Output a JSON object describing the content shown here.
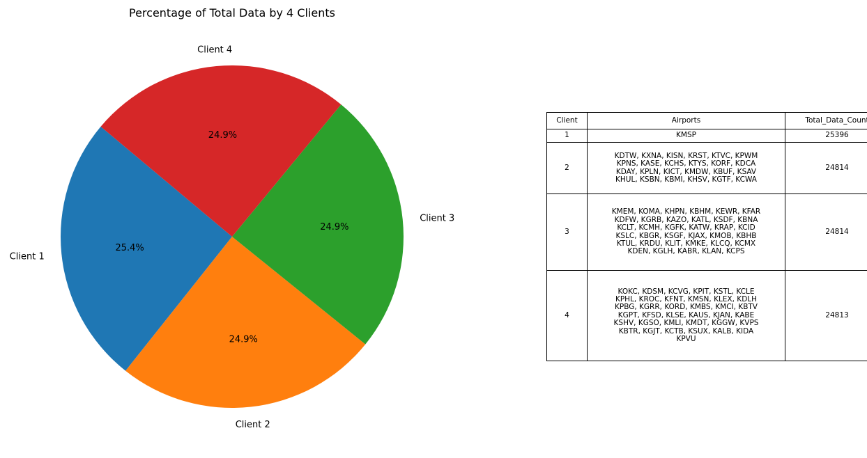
{
  "chart_data": [
    {
      "type": "pie",
      "title": "Percentage of Total Data by 4 Clients",
      "start_angle_deg": 140,
      "direction": "counterclockwise",
      "slices": [
        {
          "label": "Client 1",
          "value": 25396,
          "percent_label": "25.4%",
          "color": "#1f77b4"
        },
        {
          "label": "Client 2",
          "value": 24814,
          "percent_label": "24.9%",
          "color": "#ff7f0e"
        },
        {
          "label": "Client 3",
          "value": 24814,
          "percent_label": "24.9%",
          "color": "#2ca02c"
        },
        {
          "label": "Client 4",
          "value": 24813,
          "percent_label": "24.9%",
          "color": "#d62728"
        }
      ]
    },
    {
      "type": "table",
      "columns": [
        "Client",
        "Airports",
        "Total_Data_Count"
      ],
      "rows": [
        {
          "client": "1",
          "airports": [
            "KMSP"
          ],
          "total": "25396"
        },
        {
          "client": "2",
          "airports": [
            "KDTW, KXNA, KISN, KRST, KTVC, KPWM",
            "KPNS, KASE, KCHS, KTYS, KORF, KDCA",
            "KDAY, KPLN, KICT, KMDW, KBUF, KSAV",
            "KHUL, KSBN, KBMI, KHSV, KGTF, KCWA"
          ],
          "total": "24814"
        },
        {
          "client": "3",
          "airports": [
            "KMEM, KOMA, KHPN, KBHM, KEWR, KFAR",
            "KDFW, KGRB, KAZO, KATL, KSDF, KBNA",
            "KCLT, KCMH, KGFK, KATW, KRAP, KCID",
            "KSLC, KBGR, KSGF, KJAX, KMOB, KBHB",
            "KTUL, KRDU, KLIT, KMKE, KLCQ, KCMX",
            "KDEN, KGLH, KABR, KLAN, KCPS"
          ],
          "total": "24814"
        },
        {
          "client": "4",
          "airports": [
            "KOKC, KDSM, KCVG, KPIT, KSTL, KCLE",
            "KPHL, KROC, KFNT, KMSN, KLEX, KDLH",
            "KPBG, KGRR, KORD, KMBS, KMCI, KBTV",
            "KGPT, KFSD, KLSE, KAUS, KJAN, KABE",
            "KSHV, KGSO, KMLI, KMDT, KGGW, KVPS",
            "KBTR, KGJT, KCTB, KSUX, KALB, KIDA",
            "KPVU"
          ],
          "total": "24813"
        }
      ]
    }
  ]
}
